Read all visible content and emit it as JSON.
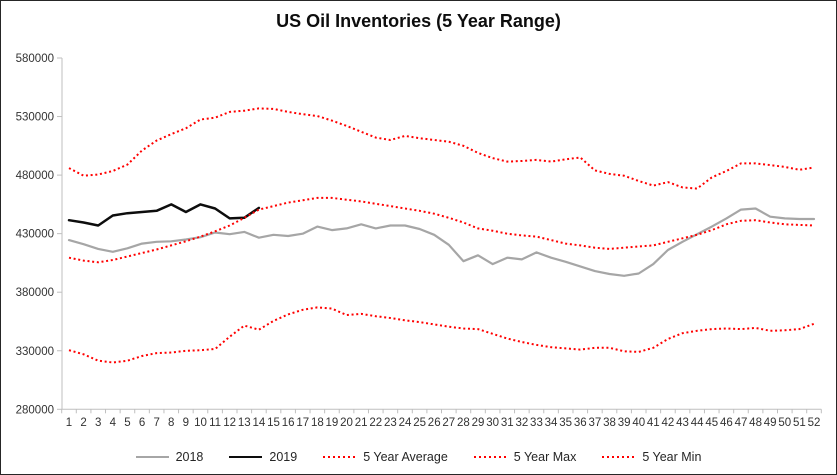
{
  "chart_data": {
    "type": "line",
    "title": "US Oil Inventories (5 Year Range)",
    "xlabel": "",
    "ylabel": "",
    "x": [
      1,
      2,
      3,
      4,
      5,
      6,
      7,
      8,
      9,
      10,
      11,
      12,
      13,
      14,
      15,
      16,
      17,
      18,
      19,
      20,
      21,
      22,
      23,
      24,
      25,
      26,
      27,
      28,
      29,
      30,
      31,
      32,
      33,
      34,
      35,
      36,
      37,
      38,
      39,
      40,
      41,
      42,
      43,
      44,
      45,
      46,
      47,
      48,
      49,
      50,
      51,
      52
    ],
    "y_axis": {
      "min": 280000,
      "max": 580000,
      "tick_step": 50000,
      "tick_labels": [
        "280000",
        "330000",
        "380000",
        "430000",
        "480000",
        "530000",
        "580000"
      ]
    },
    "grid": false,
    "legend_position": "bottom",
    "colors": {
      "gray_series": "#a6a6a6",
      "black_series": "#0d0d0d",
      "red_series": "#ff0000",
      "axis": "#bfbfbf",
      "tick_text": "#333333"
    },
    "series": [
      {
        "name": "2018",
        "color": "#a6a6a6",
        "style": "solid",
        "values": [
          424500,
          421000,
          417000,
          414500,
          417500,
          421500,
          423000,
          423500,
          425000,
          427000,
          431000,
          429500,
          431500,
          426500,
          429000,
          428000,
          430000,
          436000,
          433000,
          434500,
          438000,
          434500,
          437000,
          437000,
          434000,
          429000,
          420500,
          406500,
          411500,
          404000,
          409500,
          408000,
          414000,
          409500,
          406000,
          402000,
          398000,
          395500,
          394000,
          396000,
          404000,
          416000,
          423000,
          429500,
          436000,
          443000,
          450500,
          451500,
          444500,
          443000,
          442500,
          442500
        ]
      },
      {
        "name": "2019",
        "color": "#0d0d0d",
        "style": "solid",
        "values": [
          441500,
          439500,
          437000,
          445500,
          447500,
          448500,
          449500,
          455000,
          448500,
          455000,
          451500,
          443000,
          443500,
          452000
        ]
      },
      {
        "name": "5 Year Average",
        "color": "#ff0000",
        "style": "dotted",
        "values": [
          409500,
          407000,
          405500,
          407500,
          410500,
          413500,
          416500,
          420000,
          423500,
          427500,
          432000,
          437000,
          443500,
          450500,
          453500,
          456500,
          458500,
          460500,
          460500,
          459000,
          457500,
          455500,
          453500,
          451500,
          449500,
          447000,
          443500,
          439500,
          434500,
          432500,
          430000,
          428500,
          427500,
          424500,
          421500,
          420000,
          418000,
          417000,
          418000,
          419000,
          420000,
          423000,
          426000,
          429000,
          433000,
          438000,
          441000,
          441500,
          439500,
          438000,
          437500,
          437000
        ]
      },
      {
        "name": "5 Year Max",
        "color": "#ff0000",
        "style": "dotted",
        "values": [
          486000,
          479500,
          480500,
          483500,
          489000,
          501000,
          509500,
          515000,
          520000,
          527500,
          529000,
          534000,
          535000,
          537000,
          536500,
          534000,
          532000,
          530500,
          526500,
          522000,
          517000,
          512000,
          510000,
          513500,
          511500,
          510000,
          508500,
          505000,
          499000,
          494500,
          491500,
          492000,
          493000,
          491500,
          493500,
          495000,
          484000,
          481000,
          479500,
          475000,
          471000,
          474000,
          469500,
          468500,
          478000,
          483500,
          490000,
          490000,
          488500,
          487000,
          484500,
          486500
        ]
      },
      {
        "name": "5 Year Min",
        "color": "#ff0000",
        "style": "dotted",
        "values": [
          330500,
          327000,
          321500,
          320000,
          321500,
          325500,
          328000,
          328500,
          330000,
          330500,
          331500,
          342000,
          351500,
          348000,
          355500,
          361000,
          365000,
          367000,
          366000,
          360500,
          361500,
          359500,
          358000,
          356000,
          354500,
          352500,
          350500,
          349000,
          348500,
          344500,
          340500,
          337500,
          335000,
          333000,
          332000,
          331000,
          332500,
          332500,
          329500,
          329000,
          332500,
          340000,
          345000,
          347000,
          348500,
          349000,
          348500,
          349500,
          347000,
          347500,
          348500,
          353000
        ]
      }
    ]
  }
}
